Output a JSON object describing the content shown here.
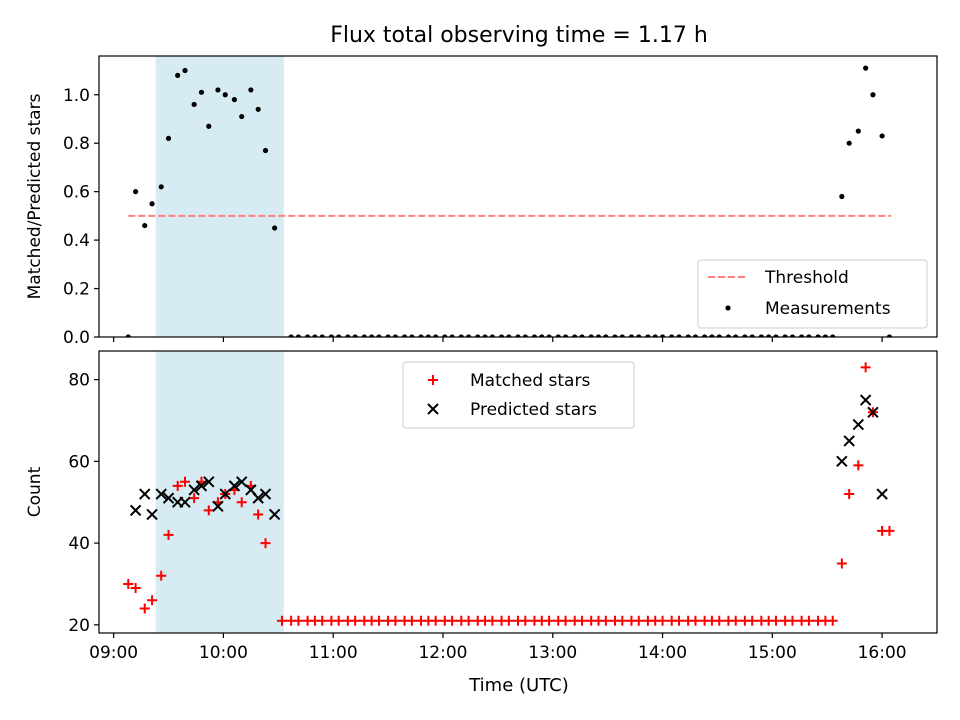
{
  "figure": {
    "title": "Flux total observing time = 1.17 h",
    "xlabel": "Time (UTC)",
    "xticks": [
      "09:00",
      "10:00",
      "11:00",
      "12:00",
      "13:00",
      "14:00",
      "15:00",
      "16:00"
    ],
    "xlim": [
      "08:52",
      "16:30"
    ],
    "highlight_span": [
      "09:23",
      "10:33"
    ],
    "colors": {
      "highlight": "#add8e6",
      "threshold": "#ff7f7f",
      "measurements": "#000000",
      "matched": "#ff0000",
      "predicted": "#000000"
    }
  },
  "chart_data": [
    {
      "type": "scatter",
      "ylabel": "Matched/Predicted stars",
      "ylim": [
        0,
        1.16
      ],
      "yticks": [
        "0.0",
        "0.2",
        "0.4",
        "0.6",
        "0.8",
        "1.0"
      ],
      "legend": {
        "placement": "lower-right",
        "entries": [
          "Threshold",
          "Measurements"
        ]
      },
      "threshold": {
        "name": "Threshold",
        "value": 0.5,
        "x_range": [
          "09:08",
          "16:05"
        ]
      },
      "series": [
        {
          "name": "Measurements",
          "points": [
            [
              "09:08",
              0.0
            ],
            [
              "09:12",
              0.6
            ],
            [
              "09:17",
              0.46
            ],
            [
              "09:21",
              0.55
            ],
            [
              "09:26",
              0.62
            ],
            [
              "09:30",
              0.82
            ],
            [
              "09:35",
              1.08
            ],
            [
              "09:39",
              1.1
            ],
            [
              "09:44",
              0.96
            ],
            [
              "09:48",
              1.01
            ],
            [
              "09:52",
              0.87
            ],
            [
              "09:57",
              1.02
            ],
            [
              "10:01",
              1.0
            ],
            [
              "10:06",
              0.98
            ],
            [
              "10:10",
              0.91
            ],
            [
              "10:15",
              1.02
            ],
            [
              "10:19",
              0.94
            ],
            [
              "10:23",
              0.77
            ],
            [
              "10:28",
              0.45
            ],
            [
              "10:37",
              0.0
            ],
            [
              "10:41",
              0.0
            ],
            [
              "10:46",
              0.0
            ],
            [
              "10:50",
              0.0
            ],
            [
              "10:54",
              0.0
            ],
            [
              "10:59",
              0.0
            ],
            [
              "11:03",
              0.0
            ],
            [
              "11:08",
              0.0
            ],
            [
              "11:12",
              0.0
            ],
            [
              "11:17",
              0.0
            ],
            [
              "11:21",
              0.0
            ],
            [
              "11:25",
              0.0
            ],
            [
              "11:30",
              0.0
            ],
            [
              "11:34",
              0.0
            ],
            [
              "11:39",
              0.0
            ],
            [
              "11:43",
              0.0
            ],
            [
              "11:48",
              0.0
            ],
            [
              "11:52",
              0.0
            ],
            [
              "11:56",
              0.0
            ],
            [
              "12:01",
              0.0
            ],
            [
              "12:05",
              0.0
            ],
            [
              "12:10",
              0.0
            ],
            [
              "12:14",
              0.0
            ],
            [
              "12:19",
              0.0
            ],
            [
              "12:23",
              0.0
            ],
            [
              "12:27",
              0.0
            ],
            [
              "12:32",
              0.0
            ],
            [
              "12:36",
              0.0
            ],
            [
              "12:41",
              0.0
            ],
            [
              "12:45",
              0.0
            ],
            [
              "12:50",
              0.0
            ],
            [
              "12:54",
              0.0
            ],
            [
              "12:58",
              0.0
            ],
            [
              "13:03",
              0.0
            ],
            [
              "13:07",
              0.0
            ],
            [
              "13:12",
              0.0
            ],
            [
              "13:16",
              0.0
            ],
            [
              "13:21",
              0.0
            ],
            [
              "13:25",
              0.0
            ],
            [
              "13:29",
              0.0
            ],
            [
              "13:34",
              0.0
            ],
            [
              "13:38",
              0.0
            ],
            [
              "13:43",
              0.0
            ],
            [
              "13:47",
              0.0
            ],
            [
              "13:52",
              0.0
            ],
            [
              "13:56",
              0.0
            ],
            [
              "14:00",
              0.0
            ],
            [
              "14:05",
              0.0
            ],
            [
              "14:09",
              0.0
            ],
            [
              "14:14",
              0.0
            ],
            [
              "14:18",
              0.0
            ],
            [
              "14:23",
              0.0
            ],
            [
              "14:27",
              0.0
            ],
            [
              "14:31",
              0.0
            ],
            [
              "14:36",
              0.0
            ],
            [
              "14:40",
              0.0
            ],
            [
              "14:45",
              0.0
            ],
            [
              "14:49",
              0.0
            ],
            [
              "14:54",
              0.0
            ],
            [
              "14:58",
              0.0
            ],
            [
              "15:02",
              0.0
            ],
            [
              "15:07",
              0.0
            ],
            [
              "15:11",
              0.0
            ],
            [
              "15:16",
              0.0
            ],
            [
              "15:20",
              0.0
            ],
            [
              "15:25",
              0.0
            ],
            [
              "15:29",
              0.0
            ],
            [
              "15:33",
              0.0
            ],
            [
              "15:38",
              0.58
            ],
            [
              "15:42",
              0.8
            ],
            [
              "15:47",
              0.85
            ],
            [
              "15:51",
              1.11
            ],
            [
              "15:55",
              1.0
            ],
            [
              "16:00",
              0.83
            ],
            [
              "16:04",
              0.0
            ]
          ]
        }
      ]
    },
    {
      "type": "scatter",
      "ylabel": "Count",
      "ylim": [
        18,
        87
      ],
      "yticks": [
        "20",
        "40",
        "60",
        "80"
      ],
      "legend": {
        "placement": "upper-center",
        "entries": [
          "Matched stars",
          "Predicted stars"
        ]
      },
      "series": [
        {
          "name": "Matched stars",
          "marker": "plus",
          "points": [
            [
              "09:08",
              30
            ],
            [
              "09:12",
              29
            ],
            [
              "09:17",
              24
            ],
            [
              "09:21",
              26
            ],
            [
              "09:26",
              32
            ],
            [
              "09:30",
              42
            ],
            [
              "09:35",
              54
            ],
            [
              "09:39",
              55
            ],
            [
              "09:44",
              51
            ],
            [
              "09:48",
              55
            ],
            [
              "09:52",
              48
            ],
            [
              "09:57",
              50
            ],
            [
              "10:01",
              52
            ],
            [
              "10:06",
              53
            ],
            [
              "10:10",
              50
            ],
            [
              "10:15",
              54
            ],
            [
              "10:19",
              47
            ],
            [
              "10:23",
              40
            ],
            [
              "10:32",
              21
            ],
            [
              "10:37",
              21
            ],
            [
              "10:41",
              21
            ],
            [
              "10:46",
              21
            ],
            [
              "10:50",
              21
            ],
            [
              "10:54",
              21
            ],
            [
              "10:59",
              21
            ],
            [
              "11:03",
              21
            ],
            [
              "11:08",
              21
            ],
            [
              "11:12",
              21
            ],
            [
              "11:17",
              21
            ],
            [
              "11:21",
              21
            ],
            [
              "11:25",
              21
            ],
            [
              "11:30",
              21
            ],
            [
              "11:34",
              21
            ],
            [
              "11:39",
              21
            ],
            [
              "11:43",
              21
            ],
            [
              "11:48",
              21
            ],
            [
              "11:52",
              21
            ],
            [
              "11:56",
              21
            ],
            [
              "12:01",
              21
            ],
            [
              "12:05",
              21
            ],
            [
              "12:10",
              21
            ],
            [
              "12:14",
              21
            ],
            [
              "12:19",
              21
            ],
            [
              "12:23",
              21
            ],
            [
              "12:27",
              21
            ],
            [
              "12:32",
              21
            ],
            [
              "12:36",
              21
            ],
            [
              "12:41",
              21
            ],
            [
              "12:45",
              21
            ],
            [
              "12:50",
              21
            ],
            [
              "12:54",
              21
            ],
            [
              "12:58",
              21
            ],
            [
              "13:03",
              21
            ],
            [
              "13:07",
              21
            ],
            [
              "13:12",
              21
            ],
            [
              "13:16",
              21
            ],
            [
              "13:21",
              21
            ],
            [
              "13:25",
              21
            ],
            [
              "13:29",
              21
            ],
            [
              "13:34",
              21
            ],
            [
              "13:38",
              21
            ],
            [
              "13:43",
              21
            ],
            [
              "13:47",
              21
            ],
            [
              "13:52",
              21
            ],
            [
              "13:56",
              21
            ],
            [
              "14:00",
              21
            ],
            [
              "14:05",
              21
            ],
            [
              "14:09",
              21
            ],
            [
              "14:14",
              21
            ],
            [
              "14:18",
              21
            ],
            [
              "14:23",
              21
            ],
            [
              "14:27",
              21
            ],
            [
              "14:31",
              21
            ],
            [
              "14:36",
              21
            ],
            [
              "14:40",
              21
            ],
            [
              "14:45",
              21
            ],
            [
              "14:49",
              21
            ],
            [
              "14:54",
              21
            ],
            [
              "14:58",
              21
            ],
            [
              "15:02",
              21
            ],
            [
              "15:07",
              21
            ],
            [
              "15:11",
              21
            ],
            [
              "15:16",
              21
            ],
            [
              "15:20",
              21
            ],
            [
              "15:25",
              21
            ],
            [
              "15:29",
              21
            ],
            [
              "15:33",
              21
            ],
            [
              "15:38",
              35
            ],
            [
              "15:42",
              52
            ],
            [
              "15:47",
              59
            ],
            [
              "15:51",
              83
            ],
            [
              "15:55",
              72
            ],
            [
              "16:00",
              43
            ],
            [
              "16:04",
              43
            ]
          ]
        },
        {
          "name": "Predicted stars",
          "marker": "x",
          "points": [
            [
              "09:12",
              48
            ],
            [
              "09:17",
              52
            ],
            [
              "09:21",
              47
            ],
            [
              "09:26",
              52
            ],
            [
              "09:30",
              51
            ],
            [
              "09:35",
              50
            ],
            [
              "09:39",
              50
            ],
            [
              "09:44",
              53
            ],
            [
              "09:48",
              54
            ],
            [
              "09:52",
              55
            ],
            [
              "09:57",
              49
            ],
            [
              "10:01",
              52
            ],
            [
              "10:06",
              54
            ],
            [
              "10:10",
              55
            ],
            [
              "10:15",
              53
            ],
            [
              "10:19",
              51
            ],
            [
              "10:23",
              52
            ],
            [
              "10:28",
              47
            ],
            [
              "15:38",
              60
            ],
            [
              "15:42",
              65
            ],
            [
              "15:47",
              69
            ],
            [
              "15:51",
              75
            ],
            [
              "15:55",
              72
            ],
            [
              "16:00",
              52
            ]
          ]
        }
      ]
    }
  ]
}
